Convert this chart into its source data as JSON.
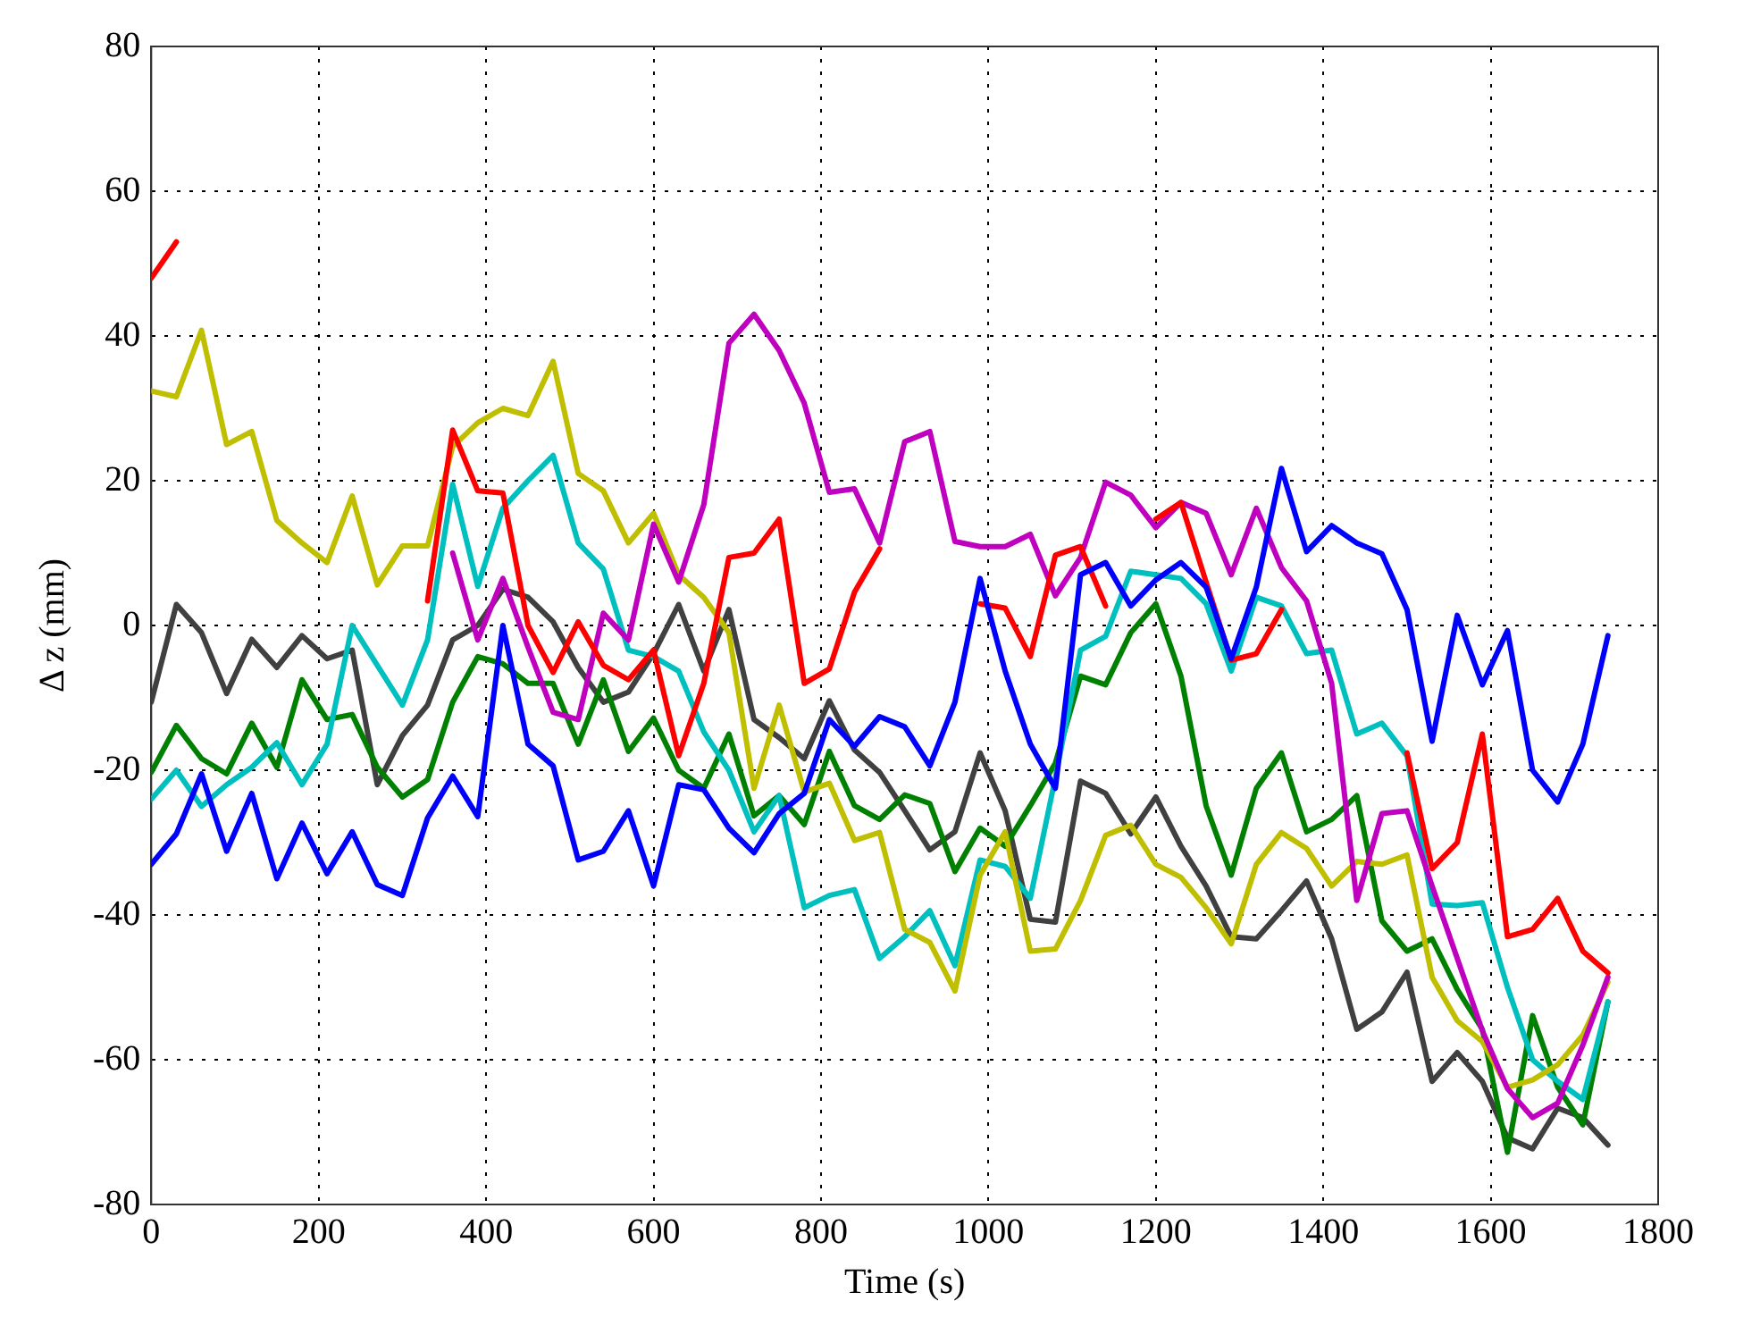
{
  "chart_data": {
    "type": "line",
    "xlabel": "Time (s)",
    "ylabel": "Δ z (mm)",
    "x": [
      0,
      30,
      60,
      90,
      120,
      150,
      180,
      210,
      240,
      270,
      300,
      330,
      360,
      390,
      420,
      450,
      480,
      510,
      540,
      570,
      600,
      630,
      660,
      690,
      720,
      750,
      780,
      810,
      840,
      870,
      900,
      930,
      960,
      990,
      1020,
      1050,
      1080,
      1110,
      1140,
      1170,
      1200,
      1230,
      1260,
      1290,
      1320,
      1350,
      1380,
      1410,
      1440,
      1470,
      1500,
      1530,
      1560,
      1590,
      1620,
      1650,
      1680,
      1710,
      1740
    ],
    "xlim": [
      0,
      1800
    ],
    "xticks": [
      0,
      200,
      400,
      600,
      800,
      1000,
      1200,
      1400,
      1600,
      1800
    ],
    "ylim": [
      -80,
      80
    ],
    "yticks": [
      -80,
      -60,
      -40,
      -20,
      0,
      20,
      40,
      60,
      80
    ],
    "grid": true,
    "legend": false,
    "line_style": "solid",
    "series": [
      {
        "color": "#0000ff",
        "values": [
          -33,
          -28.8,
          -20.5,
          -31.2,
          -23.2,
          -35,
          -27.3,
          -34.3,
          -28.5,
          -35.8,
          -37.3,
          -26.6,
          -20.8,
          -26.4,
          0,
          -16.4,
          -19.4,
          -32.4,
          -31.2,
          -25.6,
          -36,
          -22,
          -22.7,
          -28,
          -31.4,
          -26,
          -23.2,
          -13,
          -16.7,
          -12.6,
          -14,
          -19.4,
          -10.6,
          6.5,
          -6.3,
          -16.4,
          -22.5,
          7,
          8.7,
          2.7,
          6.3,
          8.7,
          5.3,
          -4.6,
          5.3,
          21.7,
          10.2,
          13.8,
          11.4,
          9.9,
          2.2,
          -16,
          1.4,
          -8.2,
          -0.7,
          -20,
          -24.4,
          -16.4,
          -1.4
        ]
      },
      {
        "color": "#ff0000",
        "values": [
          48,
          53,
          null,
          null,
          null,
          null,
          null,
          null,
          null,
          null,
          null,
          3.4,
          27,
          18.6,
          18.3,
          0,
          -6.5,
          0.5,
          -5.5,
          -7.5,
          -3.4,
          -18,
          -8,
          9.4,
          10,
          14.7,
          -8,
          -6,
          4.6,
          10.6,
          null,
          null,
          null,
          3,
          2.4,
          -4.3,
          9.7,
          10.9,
          2.7,
          null,
          14.7,
          17,
          6,
          -4.8,
          -3.9,
          2.2,
          null,
          null,
          null,
          null,
          -17.6,
          -33.6,
          -30,
          -15,
          -43,
          -42,
          -37.7,
          -45,
          -48
        ]
      },
      {
        "color": "#bf00bf",
        "values": [
          null,
          null,
          null,
          null,
          null,
          null,
          null,
          null,
          null,
          null,
          null,
          null,
          10,
          -2,
          6.5,
          -3,
          -12,
          -13,
          1.7,
          -2,
          14,
          6,
          16.7,
          39,
          43,
          38,
          30.7,
          18.4,
          18.9,
          11.4,
          25.4,
          26.8,
          11.6,
          10.9,
          10.9,
          12.6,
          4.1,
          9.4,
          19.8,
          18,
          13.5,
          17,
          15.5,
          7,
          16.2,
          8,
          3.4,
          -8,
          -38,
          -26,
          -25.6,
          -36,
          -46,
          -56,
          -64,
          -68,
          -66,
          -58,
          -48.6
        ]
      },
      {
        "color": "#bfbf00",
        "values": [
          32.4,
          31.6,
          40.8,
          25,
          26.8,
          14.5,
          11.4,
          8.7,
          17.9,
          5.6,
          11,
          11,
          24.7,
          28,
          30,
          29,
          36.5,
          21,
          18.6,
          11.4,
          15.5,
          7,
          3.9,
          -1,
          -22.5,
          -11,
          -23,
          -21.8,
          -29.7,
          -28.6,
          -42,
          -43.8,
          -50.5,
          -34.5,
          -28.5,
          -45,
          -44.7,
          -38,
          -29,
          -27.6,
          -33,
          -34.8,
          -39,
          -44,
          -33,
          -28.6,
          -30.8,
          -36,
          -32.6,
          -33,
          -31.7,
          -48.6,
          -54.6,
          -57.5,
          -63.8,
          -62.8,
          -60.7,
          -56.6,
          -49.3
        ]
      },
      {
        "color": "#00bfbf",
        "values": [
          -24,
          -20,
          -25,
          -22,
          -19.6,
          -16.2,
          -22,
          -16.4,
          0,
          -5.5,
          -11,
          -2,
          19.5,
          5.4,
          16.2,
          20,
          23.5,
          11.4,
          7.8,
          -3.4,
          -4.3,
          -6.3,
          -14.7,
          -20,
          -28.5,
          -23.5,
          -39,
          -37.3,
          -36.5,
          -46,
          -43,
          -39.4,
          -47,
          -32.4,
          -33.3,
          -37.7,
          -21,
          -3.4,
          -1.5,
          7.5,
          7,
          6.5,
          3,
          -6.3,
          3.9,
          2.7,
          -3.9,
          -3.4,
          -15,
          -13.5,
          -18,
          -38.5,
          -38.7,
          -38.3,
          -50,
          -60,
          -63,
          -65.5,
          -52
        ]
      },
      {
        "color": "#008000",
        "values": [
          -20.3,
          -13.8,
          -18.4,
          -20.5,
          -13.5,
          -19.6,
          -7.5,
          -13,
          -12.3,
          -19.6,
          -23.7,
          -21.3,
          -10.6,
          -4.3,
          -5.3,
          -8,
          -8,
          -16.4,
          -7.5,
          -17.4,
          -12.8,
          -20,
          -22.5,
          -15,
          -26.3,
          -23.5,
          -27.5,
          -17.4,
          -24.9,
          -26.8,
          -23.4,
          -24.6,
          -34,
          -28,
          -30.5,
          -24.9,
          -19,
          -7,
          -8.2,
          -1,
          3,
          -7,
          -24.9,
          -34.5,
          -22.5,
          -17.6,
          -28.5,
          -26.8,
          -23.5,
          -40.8,
          -45,
          -43.3,
          -50.3,
          -55.8,
          -72.8,
          -53.9,
          -63.8,
          -69,
          -52
        ]
      },
      {
        "color": "#404040",
        "values": [
          -10.6,
          2.9,
          -1,
          -9.4,
          -1.9,
          -5.8,
          -1.4,
          -4.6,
          -3.4,
          -22,
          -15.2,
          -11,
          -2,
          0,
          5,
          3.9,
          0.5,
          -5.8,
          -10.6,
          -9.2,
          -3.9,
          2.9,
          -6.3,
          2.2,
          -13,
          -15.5,
          -18.4,
          -10.4,
          -17.2,
          -20.3,
          -25.6,
          -31,
          -28.5,
          -17.6,
          -25.6,
          -40.6,
          -41,
          -21.5,
          -23.2,
          -28.8,
          -23.7,
          -30.5,
          -36,
          -43,
          -43.3,
          -39.4,
          -35.3,
          -43.3,
          -55.8,
          -53.4,
          -47.9,
          -63,
          -59,
          -63,
          -70.8,
          -72.3,
          -66.7,
          -68,
          -71.8
        ]
      }
    ]
  }
}
